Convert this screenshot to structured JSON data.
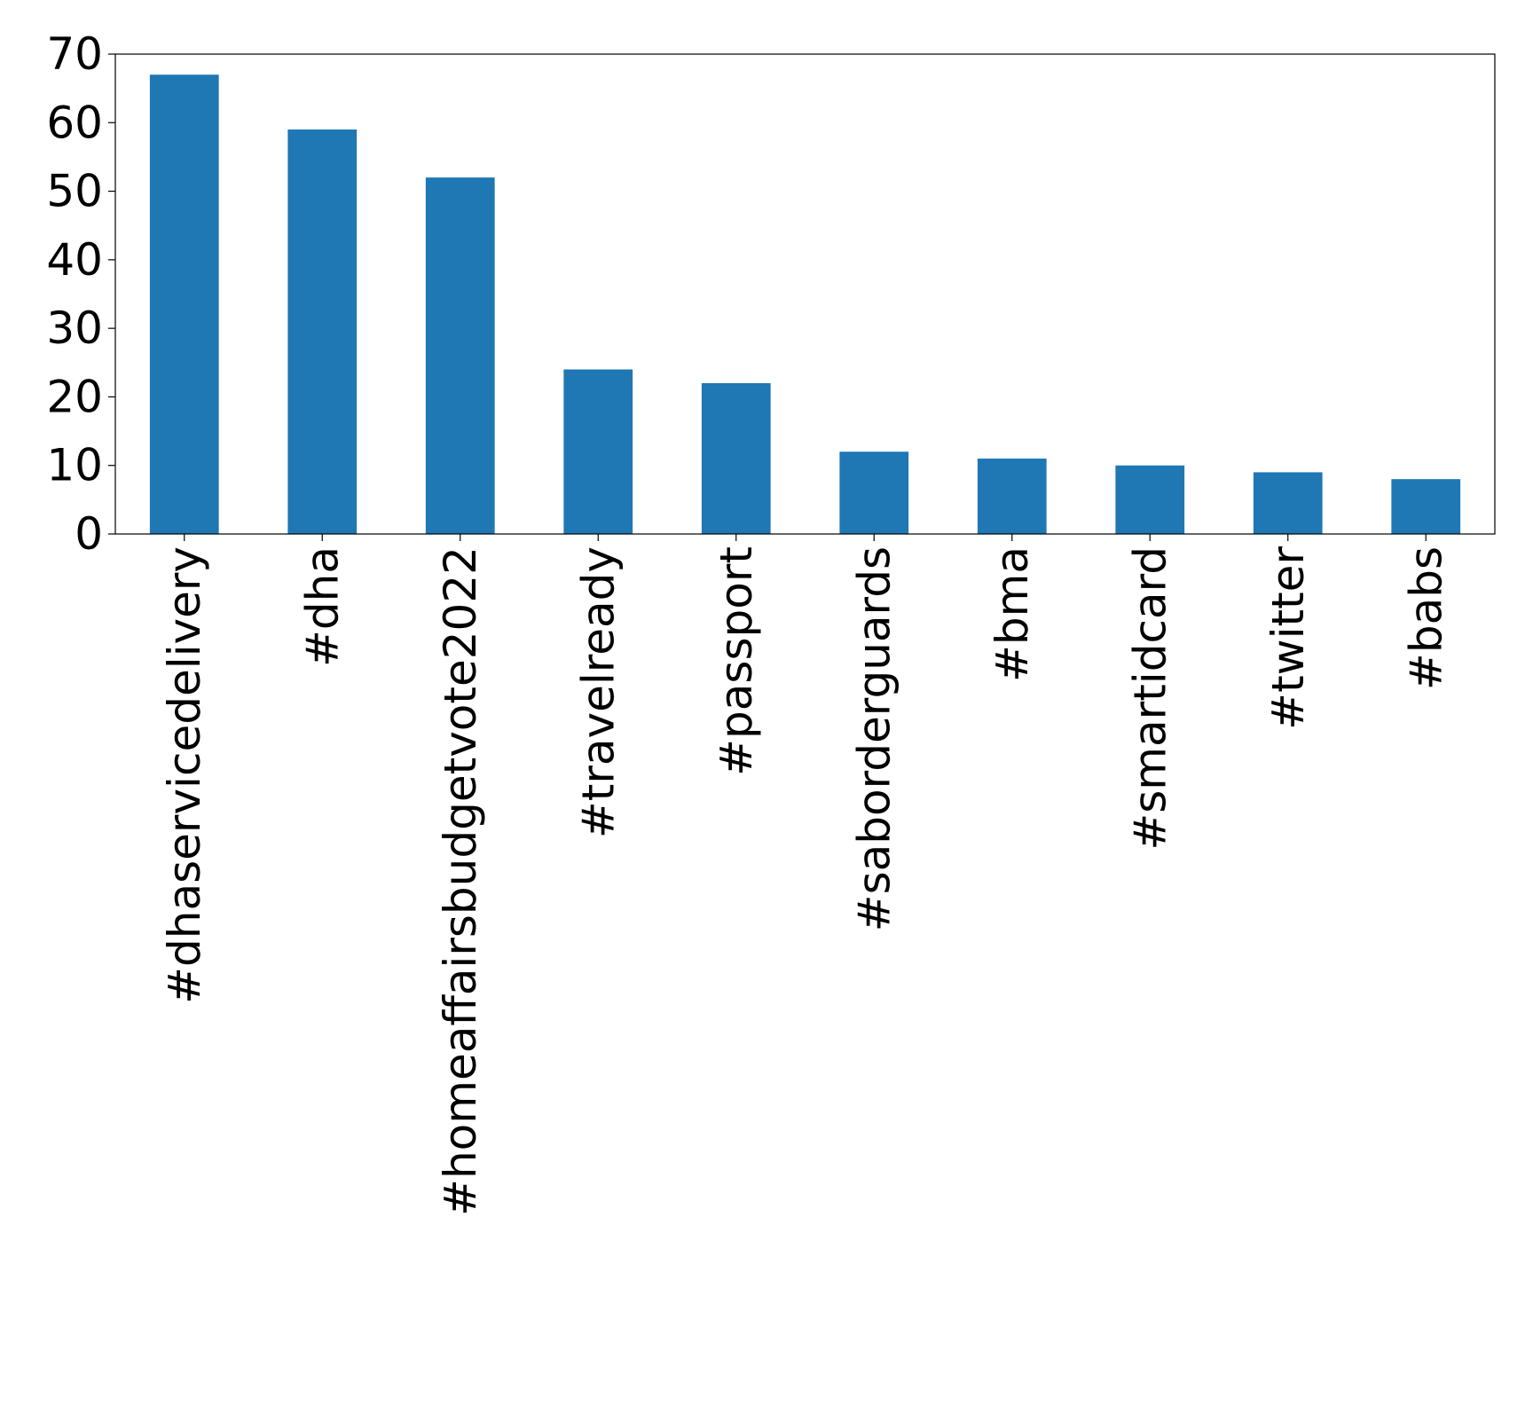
{
  "chart_data": {
    "type": "bar",
    "categories": [
      "#dhaservicedelivery",
      "#dha",
      "#homeaffairsbudgetvote2022",
      "#travelready",
      "#passport",
      "#saborderguards",
      "#bma",
      "#smartidcard",
      "#twitter",
      "#babs"
    ],
    "values": [
      67,
      59,
      52,
      24,
      22,
      12,
      11,
      10,
      9,
      8
    ],
    "ylim": [
      0,
      70
    ],
    "yticks": [
      0,
      10,
      20,
      30,
      40,
      50,
      60,
      70
    ],
    "x_tick_rotation": "vertical",
    "grid": false,
    "legend": "none",
    "title": "",
    "xlabel": "",
    "ylabel": "",
    "colors": {
      "bar": "#1f77b4",
      "axis": "#000000",
      "background": "#ffffff"
    }
  }
}
